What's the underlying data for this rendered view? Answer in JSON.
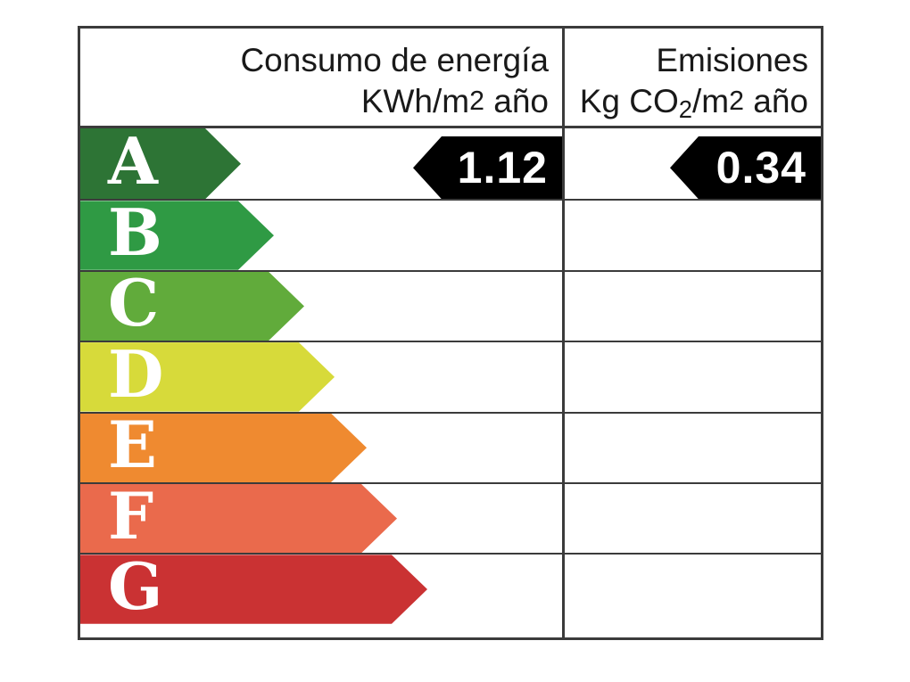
{
  "header": {
    "col1": {
      "line1": "Consumo de energía",
      "line2": {
        "a": "KWh/m",
        "b": "2",
        "c": " año"
      }
    },
    "col2": {
      "line1": "Emisiones",
      "line2": {
        "a": "Kg CO",
        "b": "2",
        "c": "/m",
        "d": "2",
        "e": " año"
      }
    }
  },
  "rows": [
    {
      "grade": "A",
      "color": "#2d7435",
      "arrow_width": 180
    },
    {
      "grade": "B",
      "color": "#2f9a44",
      "arrow_width": 217
    },
    {
      "grade": "C",
      "color": "#61ab3b",
      "arrow_width": 251
    },
    {
      "grade": "D",
      "color": "#d7da3a",
      "arrow_width": 285
    },
    {
      "grade": "E",
      "color": "#ef8a30",
      "arrow_width": 321
    },
    {
      "grade": "F",
      "color": "#ea6a4c",
      "arrow_width": 355
    },
    {
      "grade": "G",
      "color": "#ca3233",
      "arrow_width": 389
    }
  ],
  "values": {
    "A": {
      "consumo": "1.12",
      "emisiones": "0.34"
    }
  },
  "colors": {
    "border": "#3b3b3b",
    "value_arrow_bg": "#000000",
    "value_text": "#ffffff",
    "grade_letter": "#ffffff"
  },
  "chart_data": {
    "type": "table",
    "title": "Etiqueta de calificación energética",
    "columns": [
      "Consumo de energía KWh/m2 año",
      "Emisiones Kg CO2/m2 año"
    ],
    "grades": [
      "A",
      "B",
      "C",
      "D",
      "E",
      "F",
      "G"
    ],
    "grade_colors": [
      "#2d7435",
      "#2f9a44",
      "#61ab3b",
      "#d7da3a",
      "#ef8a30",
      "#ea6a4c",
      "#ca3233"
    ],
    "rating": "A",
    "consumo_energia_kwh_m2_ano": 1.12,
    "emisiones_kg_co2_m2_ano": 0.34,
    "legend_position": "none",
    "grid": true
  }
}
